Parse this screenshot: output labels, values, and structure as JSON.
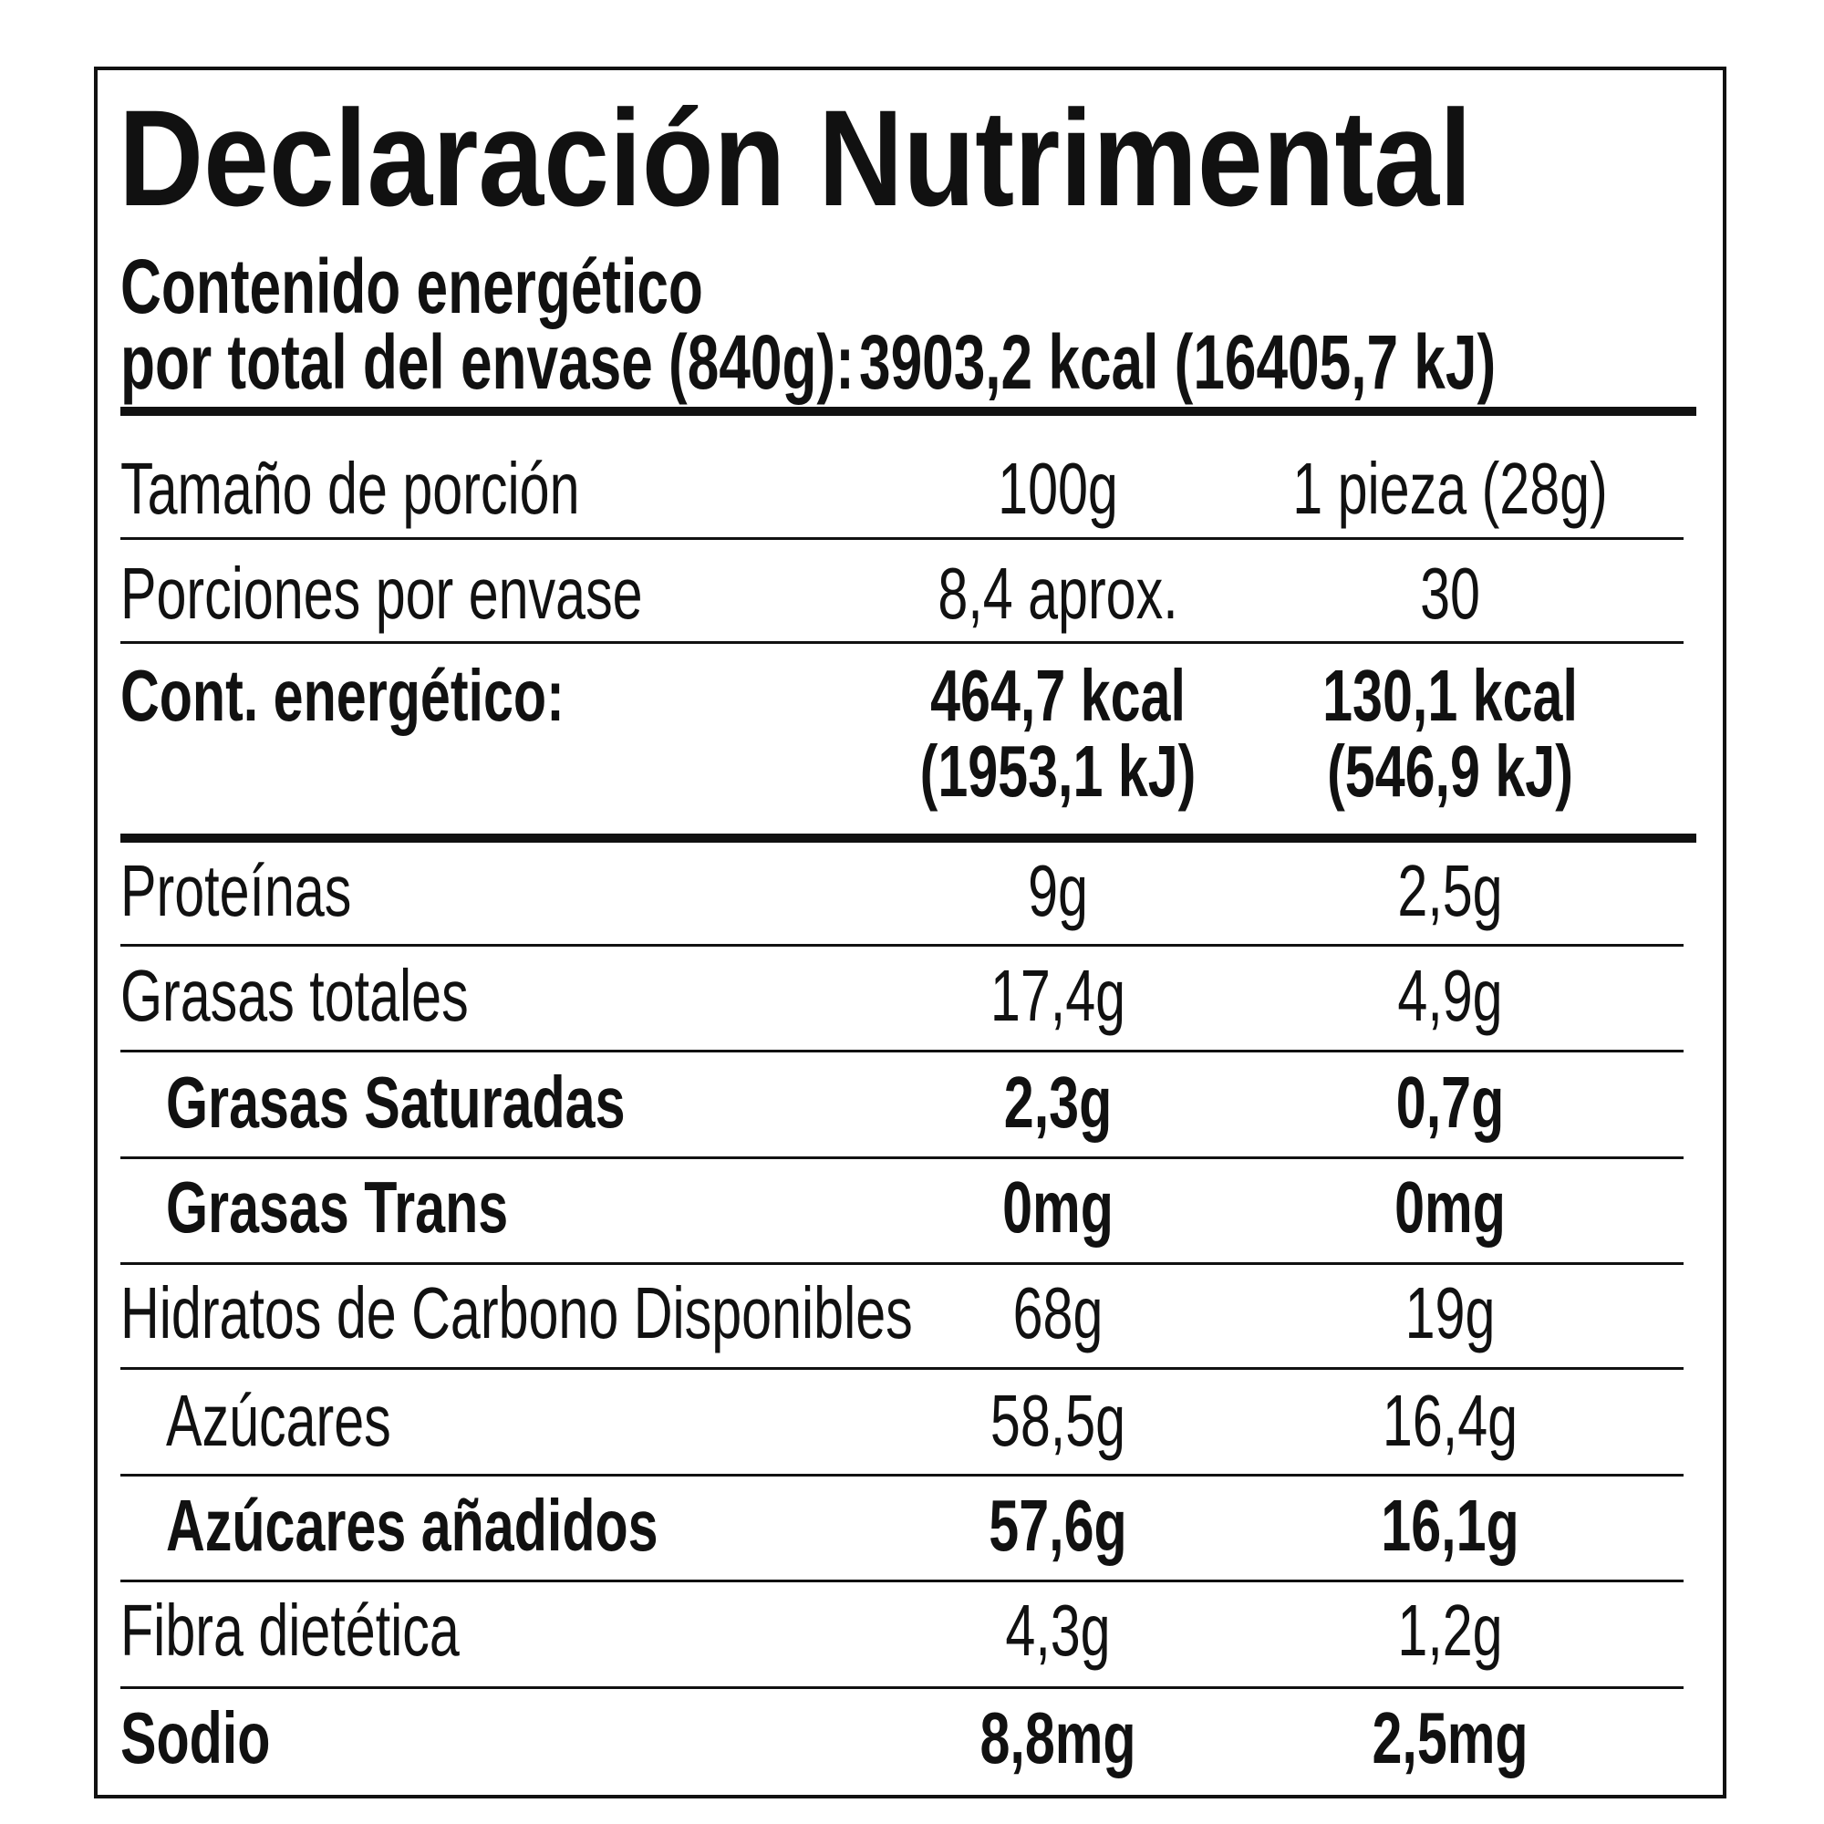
{
  "header": {
    "title": "Declaración Nutrimental",
    "energy_label": [
      "Contenido energético",
      "por total del envase (840g):"
    ],
    "energy_value": "3903,2 kcal (16405,7 kJ)"
  },
  "table": {
    "rows": [
      [
        "Tamaño de porción",
        "100g",
        "1 pieza (28g)"
      ],
      [
        "Porciones por envase",
        "8,4 aprox.",
        "30"
      ],
      [
        "Cont. energético:",
        [
          "464,7 kcal",
          "(1953,1 kJ)"
        ],
        [
          "130,1 kcal",
          "(546,9 kJ)"
        ]
      ],
      [
        "Proteínas",
        "9g",
        "2,5g"
      ],
      [
        "Grasas totales",
        "17,4g",
        "4,9g"
      ],
      [
        "Grasas Saturadas",
        "2,3g",
        "0,7g"
      ],
      [
        "Grasas Trans",
        "0mg",
        "0mg"
      ],
      [
        "Hidratos de Carbono Disponibles",
        "68g",
        "19g"
      ],
      [
        "Azúcares",
        "58,5g",
        "16,4g"
      ],
      [
        "Azúcares añadidos",
        "57,6g",
        "16,1g"
      ],
      [
        "Fibra dietética",
        "4,3g",
        "1,2g"
      ],
      [
        "Sodio",
        "8,8mg",
        "2,5mg"
      ]
    ]
  }
}
